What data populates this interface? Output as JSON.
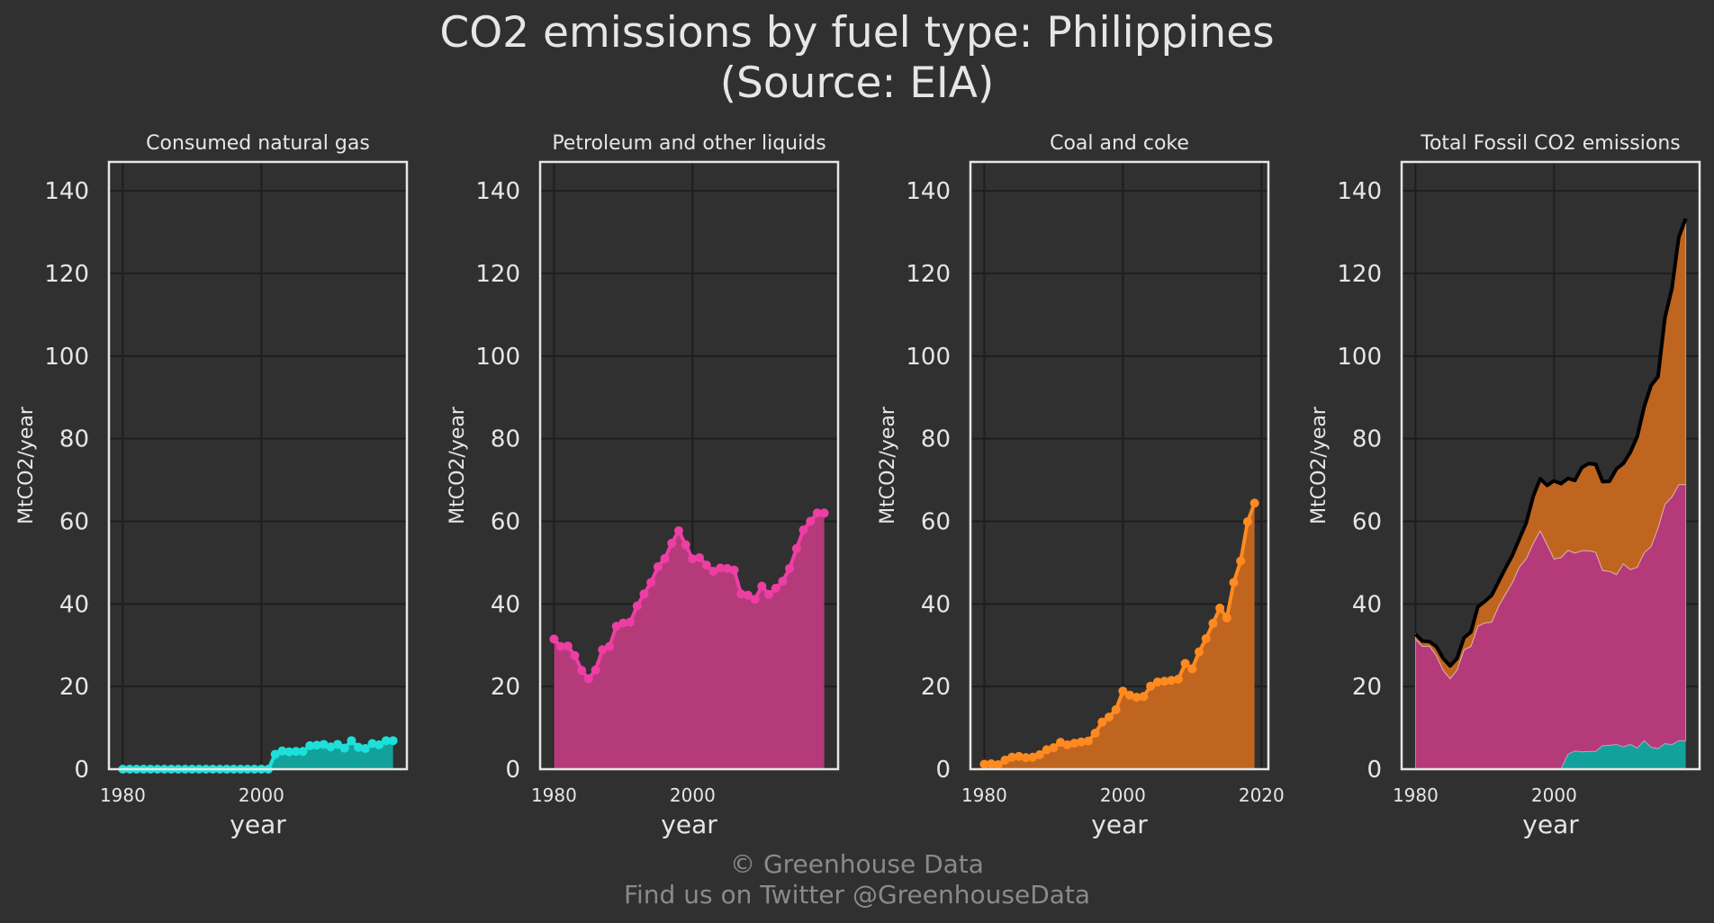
{
  "figure": {
    "title_line1": "CO2 emissions by fuel type: Philippines",
    "title_line2": "(Source: EIA)",
    "footer_line1": "© Greenhouse Data",
    "footer_line2": "Find us on Twitter @GreenhouseData"
  },
  "colors": {
    "background": "#303030",
    "grid": "#1e1e1e",
    "frame": "#e6e6e6",
    "gas": "#1de0da",
    "gas_fill": "#13a19c",
    "petroleum": "#ee3ea4",
    "petroleum_fill": "#b53a7a",
    "coal": "#ff8a1f",
    "coal_fill": "#c0651f",
    "total_line": "#000000"
  },
  "chart_data": [
    {
      "type": "line",
      "title": "Consumed natural gas",
      "xlabel": "year",
      "ylabel": "MtCO2/year",
      "xlim": [
        1978,
        2021
      ],
      "ylim": [
        0,
        147
      ],
      "xticks": [
        1980,
        2000
      ],
      "yticks": [
        0,
        20,
        40,
        60,
        80,
        100,
        120,
        140
      ],
      "grid": true,
      "filled": true,
      "series": [
        {
          "color_key": "gas",
          "fill_key": "gas_fill",
          "x": [
            1980,
            1981,
            1982,
            1983,
            1984,
            1985,
            1986,
            1987,
            1988,
            1989,
            1990,
            1991,
            1992,
            1993,
            1994,
            1995,
            1996,
            1997,
            1998,
            1999,
            2000,
            2001,
            2002,
            2003,
            2004,
            2005,
            2006,
            2007,
            2008,
            2009,
            2010,
            2011,
            2012,
            2013,
            2014,
            2015,
            2016,
            2017,
            2018,
            2019
          ],
          "y": [
            0,
            0,
            0,
            0,
            0,
            0,
            0,
            0,
            0,
            0,
            0,
            0,
            0,
            0,
            0,
            0,
            0,
            0,
            0,
            0,
            0,
            0,
            3.6,
            4.4,
            4.2,
            4.3,
            4.3,
            5.7,
            5.8,
            6.0,
            5.4,
            6.0,
            5.1,
            6.9,
            5.3,
            5.0,
            6.2,
            5.9,
            6.9,
            6.9
          ]
        }
      ]
    },
    {
      "type": "line",
      "title": "Petroleum and other liquids",
      "xlabel": "year",
      "ylabel": "MtCO2/year",
      "xlim": [
        1978,
        2021
      ],
      "ylim": [
        0,
        147
      ],
      "xticks": [
        1980,
        2000
      ],
      "yticks": [
        0,
        20,
        40,
        60,
        80,
        100,
        120,
        140
      ],
      "grid": true,
      "filled": true,
      "series": [
        {
          "color_key": "petroleum",
          "fill_key": "petroleum_fill",
          "x": [
            1980,
            1981,
            1982,
            1983,
            1984,
            1985,
            1986,
            1987,
            1988,
            1989,
            1990,
            1991,
            1992,
            1993,
            1994,
            1995,
            1996,
            1997,
            1998,
            1999,
            2000,
            2001,
            2002,
            2003,
            2004,
            2005,
            2006,
            2007,
            2008,
            2009,
            2010,
            2011,
            2012,
            2013,
            2014,
            2015,
            2016,
            2017,
            2018,
            2019
          ],
          "y": [
            31.5,
            29.7,
            29.8,
            27.5,
            23.9,
            21.9,
            24.0,
            28.9,
            29.7,
            34.6,
            35.4,
            35.6,
            39.5,
            42.4,
            45.2,
            49.0,
            51.0,
            54.7,
            57.7,
            54.3,
            50.9,
            51.2,
            49.4,
            47.9,
            48.7,
            48.6,
            48.2,
            42.4,
            42.1,
            41.1,
            44.3,
            42.3,
            43.8,
            45.5,
            48.6,
            53.4,
            57.9,
            60.0,
            62.0,
            62.0
          ]
        }
      ]
    },
    {
      "type": "line",
      "title": "Coal and coke",
      "xlabel": "year",
      "ylabel": "MtCO2/year",
      "xlim": [
        1978,
        2021
      ],
      "ylim": [
        0,
        147
      ],
      "xticks": [
        1980,
        2000,
        2020
      ],
      "yticks": [
        0,
        20,
        40,
        60,
        80,
        100,
        120,
        140
      ],
      "grid": true,
      "filled": true,
      "series": [
        {
          "color_key": "coal",
          "fill_key": "coal_fill",
          "x": [
            1980,
            1981,
            1982,
            1983,
            1984,
            1985,
            1986,
            1987,
            1988,
            1989,
            1990,
            1991,
            1992,
            1993,
            1994,
            1995,
            1996,
            1997,
            1998,
            1999,
            2000,
            2001,
            2002,
            2003,
            2004,
            2005,
            2006,
            2007,
            2008,
            2009,
            2010,
            2011,
            2012,
            2013,
            2014,
            2015,
            2016,
            2017,
            2018,
            2019
          ],
          "y": [
            1.2,
            1.3,
            1.1,
            2.2,
            2.9,
            3.1,
            2.8,
            2.9,
            3.5,
            4.7,
            5.2,
            6.5,
            5.9,
            6.3,
            6.6,
            6.8,
            8.7,
            11.4,
            12.6,
            14.4,
            18.9,
            17.9,
            17.4,
            17.6,
            20.1,
            21.1,
            21.3,
            21.5,
            21.8,
            25.6,
            24.3,
            28.4,
            31.6,
            35.3,
            39.0,
            36.6,
            45.2,
            50.4,
            59.9,
            64.4
          ]
        }
      ]
    },
    {
      "type": "area",
      "title": "Total Fossil CO2 emissions",
      "xlabel": "year",
      "ylabel": "MtCO2/year",
      "xlim": [
        1978,
        2021
      ],
      "ylim": [
        0,
        147
      ],
      "xticks": [
        1980,
        2000
      ],
      "yticks": [
        0,
        20,
        40,
        60,
        80,
        100,
        120,
        140
      ],
      "grid": true,
      "stacked": true,
      "x": [
        1980,
        1981,
        1982,
        1983,
        1984,
        1985,
        1986,
        1987,
        1988,
        1989,
        1990,
        1991,
        1992,
        1993,
        1994,
        1995,
        1996,
        1997,
        1998,
        1999,
        2000,
        2001,
        2002,
        2003,
        2004,
        2005,
        2006,
        2007,
        2008,
        2009,
        2010,
        2011,
        2012,
        2013,
        2014,
        2015,
        2016,
        2017,
        2018,
        2019
      ],
      "layers": [
        {
          "fill_key": "gas_fill",
          "values": [
            0,
            0,
            0,
            0,
            0,
            0,
            0,
            0,
            0,
            0,
            0,
            0,
            0,
            0,
            0,
            0,
            0,
            0,
            0,
            0,
            0,
            0,
            3.6,
            4.4,
            4.2,
            4.3,
            4.3,
            5.7,
            5.8,
            6.0,
            5.4,
            6.0,
            5.1,
            6.9,
            5.3,
            5.0,
            6.2,
            5.9,
            6.9,
            6.9
          ]
        },
        {
          "fill_key": "petroleum_fill",
          "values": [
            31.5,
            29.7,
            29.8,
            27.5,
            23.9,
            21.9,
            24.0,
            28.9,
            29.7,
            34.6,
            35.4,
            35.6,
            39.5,
            42.4,
            45.2,
            49.0,
            51.0,
            54.7,
            57.7,
            54.3,
            50.9,
            51.2,
            49.4,
            47.9,
            48.7,
            48.6,
            48.2,
            42.4,
            42.1,
            41.1,
            44.3,
            42.3,
            43.8,
            45.5,
            48.6,
            53.4,
            57.9,
            60.0,
            62.0,
            62.0
          ]
        },
        {
          "fill_key": "coal_fill",
          "values": [
            1.2,
            1.3,
            1.1,
            2.2,
            2.9,
            3.1,
            2.8,
            2.9,
            3.5,
            4.7,
            5.2,
            6.5,
            5.9,
            6.3,
            6.6,
            6.8,
            8.7,
            11.4,
            12.6,
            14.4,
            18.9,
            17.9,
            17.4,
            17.6,
            20.1,
            21.1,
            21.3,
            21.5,
            21.8,
            25.6,
            24.3,
            28.4,
            31.6,
            35.3,
            39.0,
            36.6,
            45.2,
            50.4,
            59.9,
            64.4
          ]
        }
      ],
      "total_line_key": "total_line"
    }
  ]
}
